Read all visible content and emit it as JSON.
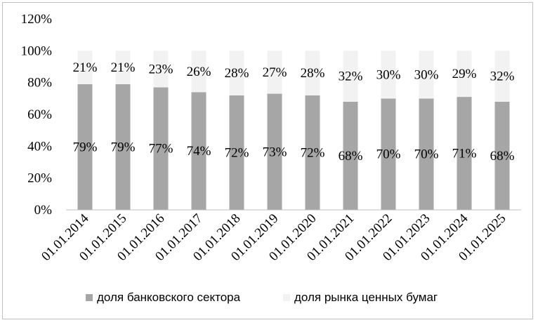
{
  "chart_data": {
    "type": "bar",
    "stacked": true,
    "percent": true,
    "categories": [
      "01.01.2014",
      "01.01.2015",
      "01.01.2016",
      "01.01.2017",
      "01.01.2018",
      "01.01.2019",
      "01.01.2020",
      "01.01.2021",
      "01.01.2022",
      "01.01.2023",
      "01.01.2024",
      "01.01.2025"
    ],
    "series": [
      {
        "name": "доля банковского сектора",
        "values": [
          79,
          79,
          77,
          74,
          72,
          73,
          72,
          68,
          70,
          70,
          71,
          68
        ],
        "color": "#a6a6a6"
      },
      {
        "name": "доля рынка ценных бумаг",
        "values": [
          21,
          21,
          23,
          26,
          28,
          27,
          28,
          32,
          30,
          30,
          29,
          32
        ],
        "color": "#f2f2f2"
      }
    ],
    "yticks": [
      "0%",
      "20%",
      "40%",
      "60%",
      "80%",
      "100%",
      "120%"
    ],
    "ylim": [
      0,
      120
    ],
    "grid": false,
    "legend_position": "bottom"
  }
}
